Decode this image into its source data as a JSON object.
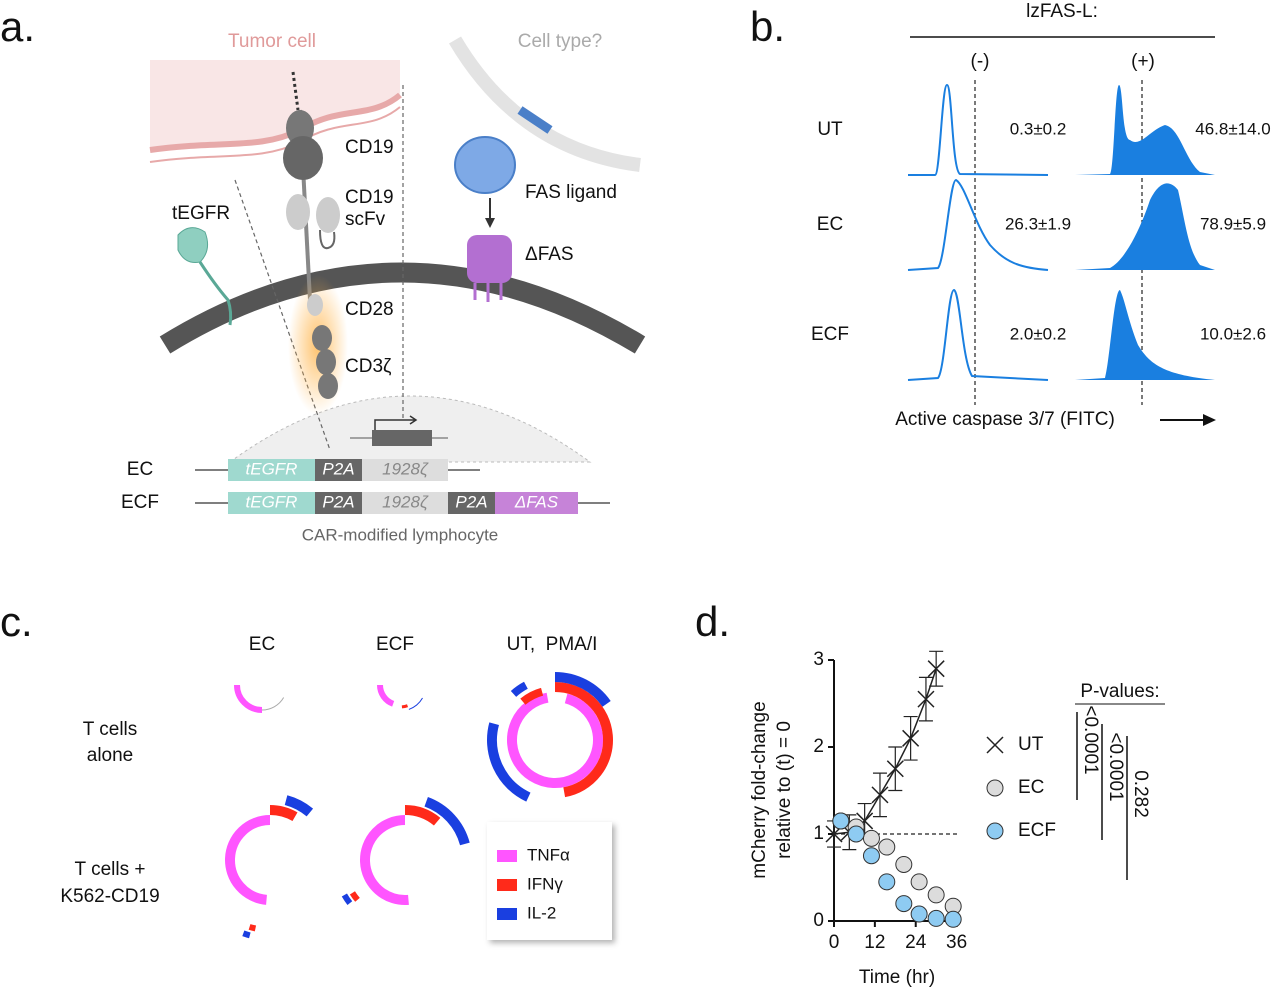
{
  "panel_a": {
    "label": "a.",
    "tumor_cell": "Tumor cell",
    "cell_type": "Cell type?",
    "cd19": "CD19",
    "cd19_scfv": [
      "CD19",
      "scFv"
    ],
    "tegfr": "tEGFR",
    "fas_ligand": "FAS ligand",
    "dfas": "ΔFAS",
    "cd28": "CD28",
    "cd3z": "CD3ζ",
    "constructs": [
      {
        "name": "EC",
        "segments": [
          "tEGFR",
          "P2A",
          "1928ζ"
        ]
      },
      {
        "name": "ECF",
        "segments": [
          "tEGFR",
          "P2A",
          "1928ζ",
          "P2A",
          "ΔFAS"
        ]
      }
    ],
    "caption": "CAR-modified lymphocyte"
  },
  "panel_b": {
    "label": "b.",
    "header": "lzFAS-L:",
    "columns": [
      "(-)",
      "(+)"
    ],
    "rows": [
      {
        "name": "UT",
        "values": [
          "0.3±0.2",
          "46.8±14.0"
        ]
      },
      {
        "name": "EC",
        "values": [
          "26.3±1.9",
          "78.9±5.9"
        ]
      },
      {
        "name": "ECF",
        "values": [
          "2.0±0.2",
          "10.0±2.6"
        ]
      }
    ],
    "x_label": "Active caspase 3/7 (FITC)"
  },
  "panel_c": {
    "label": "c.",
    "columns": [
      "EC",
      "ECF",
      "UT,  PMA/I"
    ],
    "rows": [
      [
        "T cells",
        "alone"
      ],
      [
        "T cells +",
        "K562-CD19"
      ]
    ],
    "legend": [
      {
        "name": "TNFα",
        "color": "#ff55ff"
      },
      {
        "name": "IFNγ",
        "color": "#ff2a1a"
      },
      {
        "name": "IL-2",
        "color": "#1a3fe0"
      }
    ]
  },
  "chart_data": {
    "label": "d.",
    "type": "line",
    "xlabel": "Time (hr)",
    "ylabel": [
      "mCherry fold-change",
      "relative to (t) = 0"
    ],
    "xlim": [
      0,
      37
    ],
    "xticks": [
      0,
      12,
      24,
      36
    ],
    "ylim": [
      0,
      3
    ],
    "yticks": [
      0,
      1,
      2,
      3
    ],
    "reference_line": 1,
    "series": [
      {
        "name": "UT",
        "color": "#222222",
        "marker": "x",
        "x": [
          0,
          4.5,
          9,
          13.5,
          18,
          22.5,
          27,
          30
        ],
        "values": [
          1.0,
          1.02,
          1.15,
          1.45,
          1.75,
          2.1,
          2.55,
          2.9
        ],
        "errors": [
          0.15,
          0.2,
          0.2,
          0.25,
          0.25,
          0.25,
          0.25,
          0.2
        ]
      },
      {
        "name": "EC",
        "color": "#dcdcdc",
        "marker": "circle",
        "x": [
          2,
          6.5,
          11,
          15.5,
          20.5,
          25,
          30,
          35
        ],
        "values": [
          1.15,
          1.08,
          0.95,
          0.85,
          0.65,
          0.45,
          0.3,
          0.17
        ]
      },
      {
        "name": "ECF",
        "color": "#8ecbf2",
        "marker": "circle",
        "x": [
          2,
          6.5,
          11,
          15.5,
          20.5,
          25,
          30,
          35
        ],
        "values": [
          1.15,
          1.0,
          0.75,
          0.45,
          0.2,
          0.08,
          0.03,
          0.02
        ]
      }
    ],
    "pvalues_title": "P-values:",
    "pvalues": [
      "<0.0001",
      "<0.0001",
      "0.282"
    ]
  }
}
